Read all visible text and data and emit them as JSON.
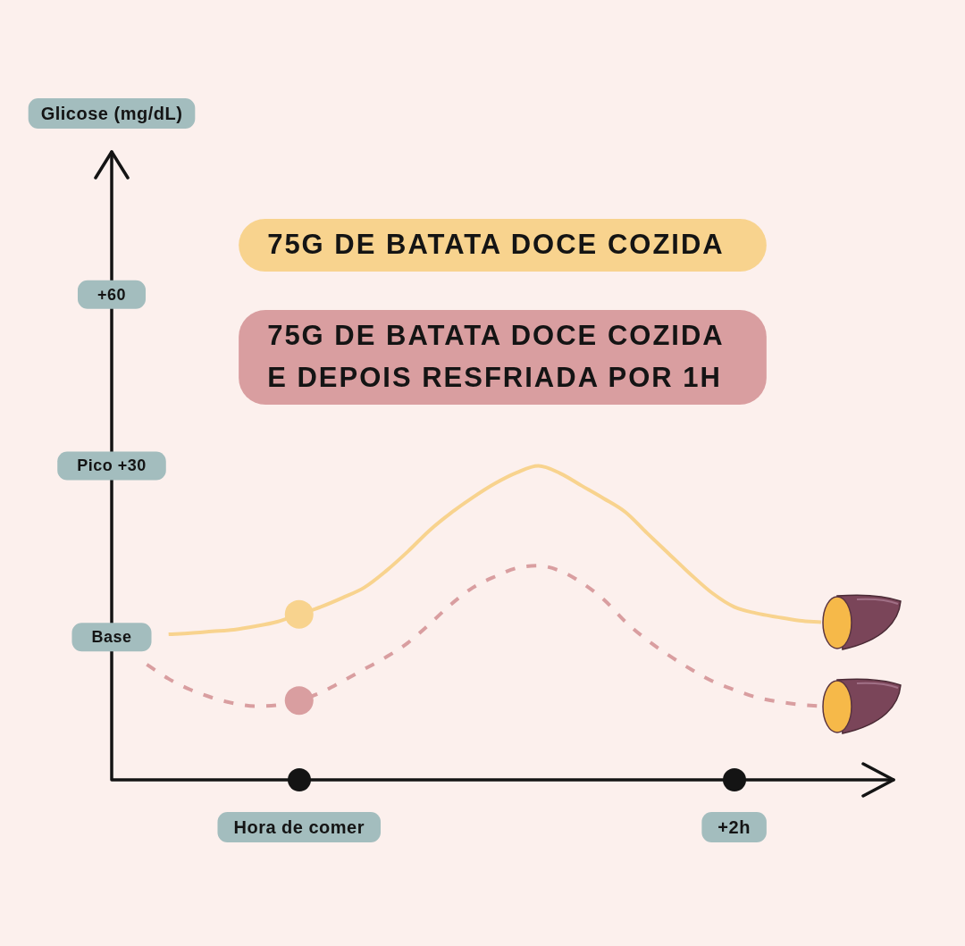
{
  "chart_data": {
    "type": "line",
    "ylabel": "Glicose (mg/dL)",
    "categories": [
      null,
      null,
      null,
      null,
      null,
      null,
      null,
      null,
      "Hora de comer",
      null,
      null,
      null,
      null,
      null,
      null,
      null,
      null,
      null,
      null,
      null,
      null,
      null,
      null,
      null,
      null,
      null,
      null,
      null,
      "+2h",
      null,
      null,
      null,
      null
    ],
    "ylim": [
      -25,
      85
    ],
    "yticks": [
      {
        "value": 0,
        "label": "Base"
      },
      {
        "value": 30,
        "label": "Pico +30"
      },
      {
        "value": 60,
        "label": "+60"
      }
    ],
    "legend": "top",
    "marker": "none",
    "series": [
      {
        "name": "75G DE BATATA DOCE COZIDA",
        "color": "#f8d38e",
        "line_style": "solid",
        "values": [
          null,
          null,
          0.5,
          0.7,
          1,
          1.3,
          1.9,
          2.7,
          4,
          5.3,
          6.9,
          8.7,
          11.6,
          15,
          18.7,
          21.8,
          24.5,
          26.9,
          28.8,
          30,
          28.7,
          26.5,
          24.3,
          21.9,
          18.2,
          14.6,
          11,
          7.7,
          5.3,
          4.2,
          3.5,
          2.9,
          2.6
        ]
      },
      {
        "name": "75G DE BATATA DOCE COZIDA E DEPOIS RESFRIADA POR 1H",
        "color": "#d99ea0",
        "line_style": "dashed",
        "values": [
          null,
          -4.8,
          -7.3,
          -9.2,
          -10.6,
          -11.6,
          -12.1,
          -11.9,
          -11.1,
          -9.7,
          -7.7,
          -5.6,
          -3.5,
          -1,
          2.3,
          5.8,
          8.7,
          10.6,
          12.1,
          12.5,
          11.6,
          9.5,
          6.6,
          2.7,
          -0.5,
          -3.2,
          -5.6,
          -7.7,
          -9.2,
          -10.5,
          -11.3,
          -11.8,
          -12.1
        ]
      },
      {
        "type": "scatter",
        "color": "#f8d38e",
        "marker": "circle",
        "values": [
          null,
          null,
          null,
          null,
          null,
          null,
          null,
          null,
          4,
          null,
          null,
          null,
          null,
          null,
          null,
          null,
          null,
          null,
          null,
          null,
          null,
          null,
          null,
          null,
          null,
          null,
          null,
          null,
          null,
          null,
          null,
          null,
          null
        ]
      },
      {
        "type": "scatter",
        "color": "#d99ea0",
        "marker": "circle",
        "values": [
          null,
          null,
          null,
          null,
          null,
          null,
          null,
          null,
          -11.1,
          null,
          null,
          null,
          null,
          null,
          null,
          null,
          null,
          null,
          null,
          null,
          null,
          null,
          null,
          null,
          null,
          null,
          null,
          null,
          null,
          null,
          null,
          null,
          null
        ]
      }
    ]
  }
}
